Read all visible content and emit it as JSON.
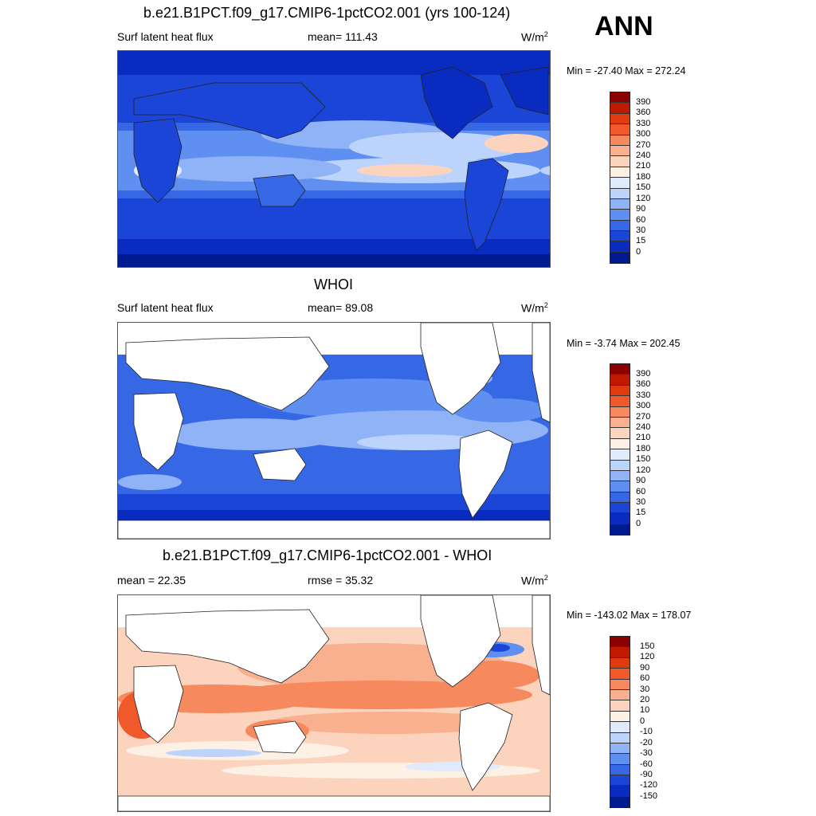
{
  "season": "ANN",
  "panels": [
    {
      "title": "b.e21.B1PCT.f09_g17.CMIP6-1pctCO2.001 (yrs 100-124)",
      "left": "Surf latent heat flux",
      "center": "mean= 111.43",
      "units": "W/m",
      "units_sup": "2",
      "minmax": "Min = -27.40 Max = 272.24",
      "colorbar": {
        "labels": [
          "390",
          "360",
          "330",
          "300",
          "270",
          "240",
          "210",
          "180",
          "150",
          "120",
          "90",
          "60",
          "30",
          "15",
          "0"
        ],
        "colors": [
          "#8b0000",
          "#bf1a00",
          "#e03a0f",
          "#f05a2a",
          "#f68a5e",
          "#f9b08e",
          "#fcd4be",
          "#fdf0e4",
          "#dfeafc",
          "#bcd3fb",
          "#8fb3f6",
          "#5f8ff0",
          "#3668e6",
          "#1b45d6",
          "#0a2bbf",
          "#001a8f"
        ]
      }
    },
    {
      "title": "WHOI",
      "left": "Surf latent heat flux",
      "center": "mean=  89.08",
      "units": "W/m",
      "units_sup": "2",
      "minmax": "Min =  -3.74 Max = 202.45",
      "colorbar": {
        "labels": [
          "390",
          "360",
          "330",
          "300",
          "270",
          "240",
          "210",
          "180",
          "150",
          "120",
          "90",
          "60",
          "30",
          "15",
          "0"
        ],
        "colors": [
          "#8b0000",
          "#bf1a00",
          "#e03a0f",
          "#f05a2a",
          "#f68a5e",
          "#f9b08e",
          "#fcd4be",
          "#fdf0e4",
          "#dfeafc",
          "#bcd3fb",
          "#8fb3f6",
          "#5f8ff0",
          "#3668e6",
          "#1b45d6",
          "#0a2bbf",
          "#001a8f"
        ]
      }
    },
    {
      "title": "b.e21.B1PCT.f09_g17.CMIP6-1pctCO2.001 - WHOI",
      "left": "mean =  22.35",
      "center": "rmse =  35.32",
      "units": "W/m",
      "units_sup": "2",
      "minmax": "Min = -143.02 Max = 178.07",
      "colorbar": {
        "labels": [
          "150",
          "120",
          "90",
          "60",
          "30",
          "20",
          "10",
          "0",
          "-10",
          "-20",
          "-30",
          "-60",
          "-90",
          "-120",
          "-150"
        ],
        "colors": [
          "#8b0000",
          "#bf1a00",
          "#e03a0f",
          "#f05a2a",
          "#f68a5e",
          "#f9b08e",
          "#fcd4be",
          "#fdf0e4",
          "#dfeafc",
          "#bcd3fb",
          "#8fb3f6",
          "#5f8ff0",
          "#3668e6",
          "#1b45d6",
          "#0a2bbf",
          "#001a8f"
        ]
      }
    }
  ]
}
